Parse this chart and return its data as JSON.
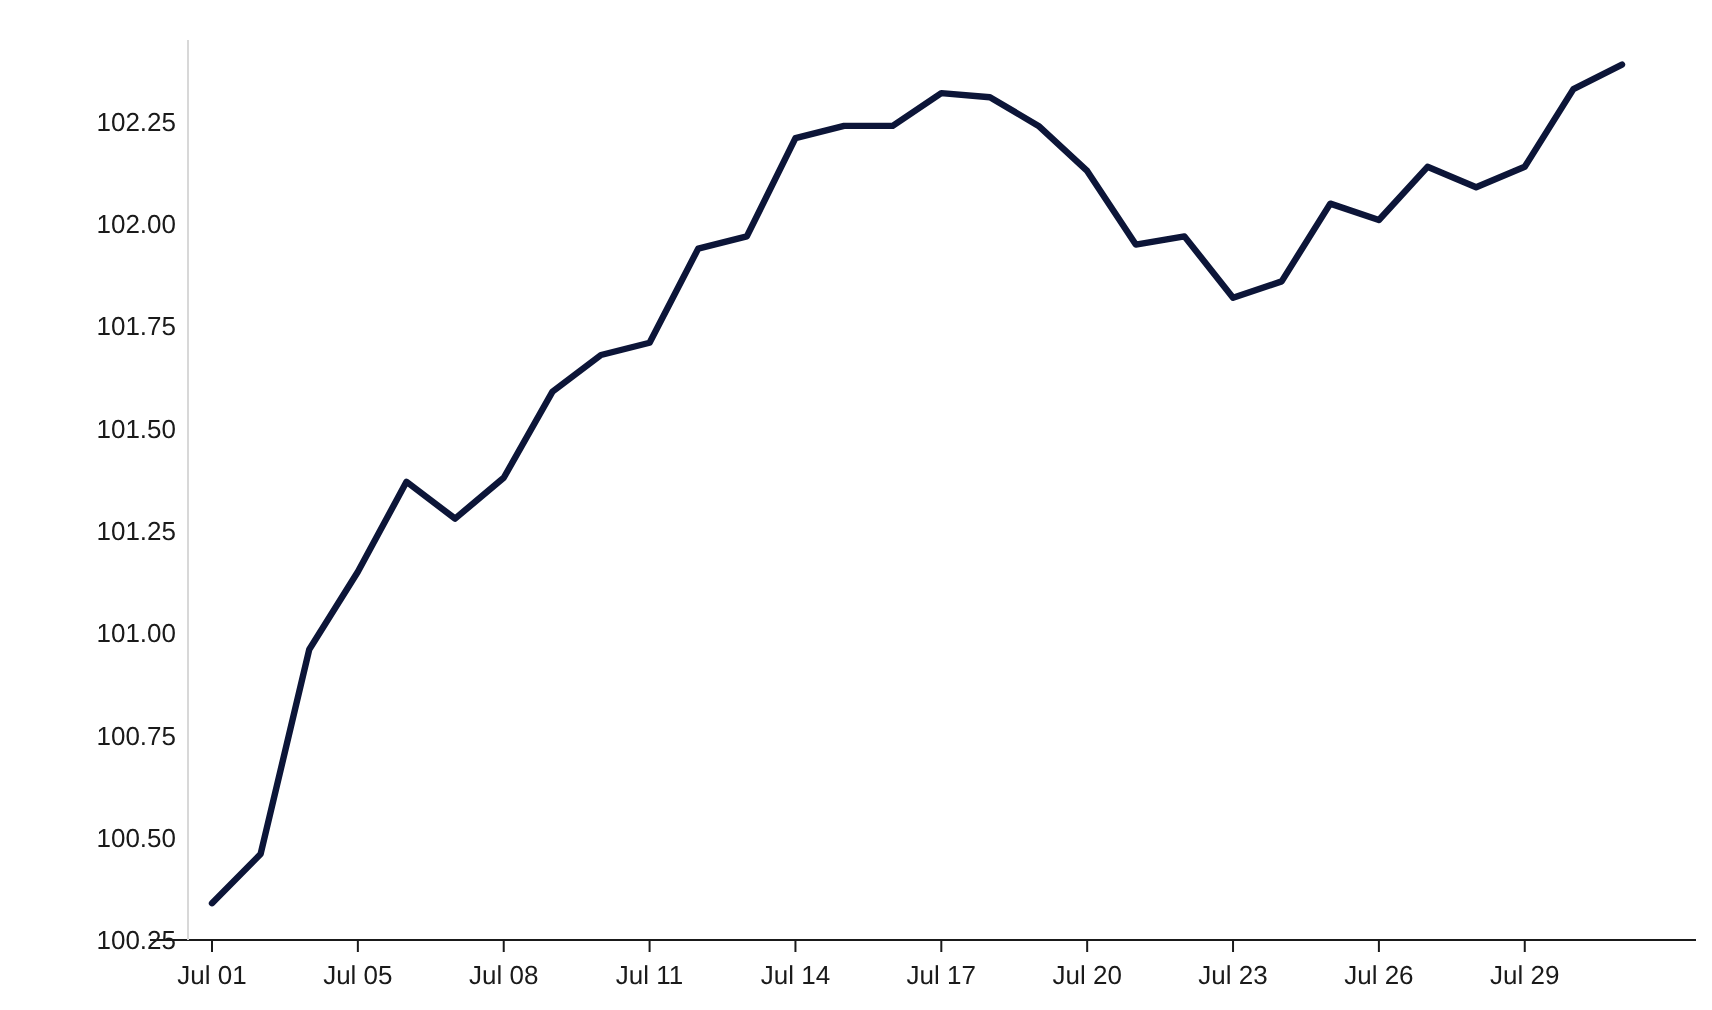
{
  "chart_data": {
    "type": "line",
    "categories": [
      "Jul 01",
      null,
      null,
      "Jul 05",
      null,
      null,
      "Jul 08",
      null,
      null,
      "Jul 11",
      null,
      null,
      "Jul 14",
      null,
      null,
      "Jul 17",
      null,
      null,
      "Jul 20",
      null,
      null,
      "Jul 23",
      null,
      null,
      "Jul 26",
      null,
      null,
      "Jul 29",
      null,
      null
    ],
    "series": [
      {
        "color": "#0c1538",
        "values": [
          100.34,
          100.46,
          100.96,
          101.15,
          101.37,
          101.28,
          101.38,
          101.59,
          101.68,
          101.71,
          101.94,
          101.97,
          102.21,
          102.24,
          102.24,
          102.32,
          102.31,
          102.24,
          102.13,
          101.95,
          101.97,
          101.82,
          101.86,
          102.05,
          102.01,
          102.14,
          102.09,
          102.14,
          102.33,
          102.39
        ]
      }
    ],
    "yticks": [
      {
        "value": 100.25,
        "label": "100.25"
      },
      {
        "value": 100.5,
        "label": "100.50"
      },
      {
        "value": 100.75,
        "label": "100.75"
      },
      {
        "value": 101,
        "label": "101.00"
      },
      {
        "value": 101.25,
        "label": "101.25"
      },
      {
        "value": 101.5,
        "label": "101.50"
      },
      {
        "value": 101.75,
        "label": "101.75"
      },
      {
        "value": 102,
        "label": "102.00"
      },
      {
        "value": 102.25,
        "label": "102.25"
      }
    ],
    "ylim": [
      100.25,
      102.45
    ],
    "grid": false,
    "marker": "none",
    "line_style": "solid"
  }
}
